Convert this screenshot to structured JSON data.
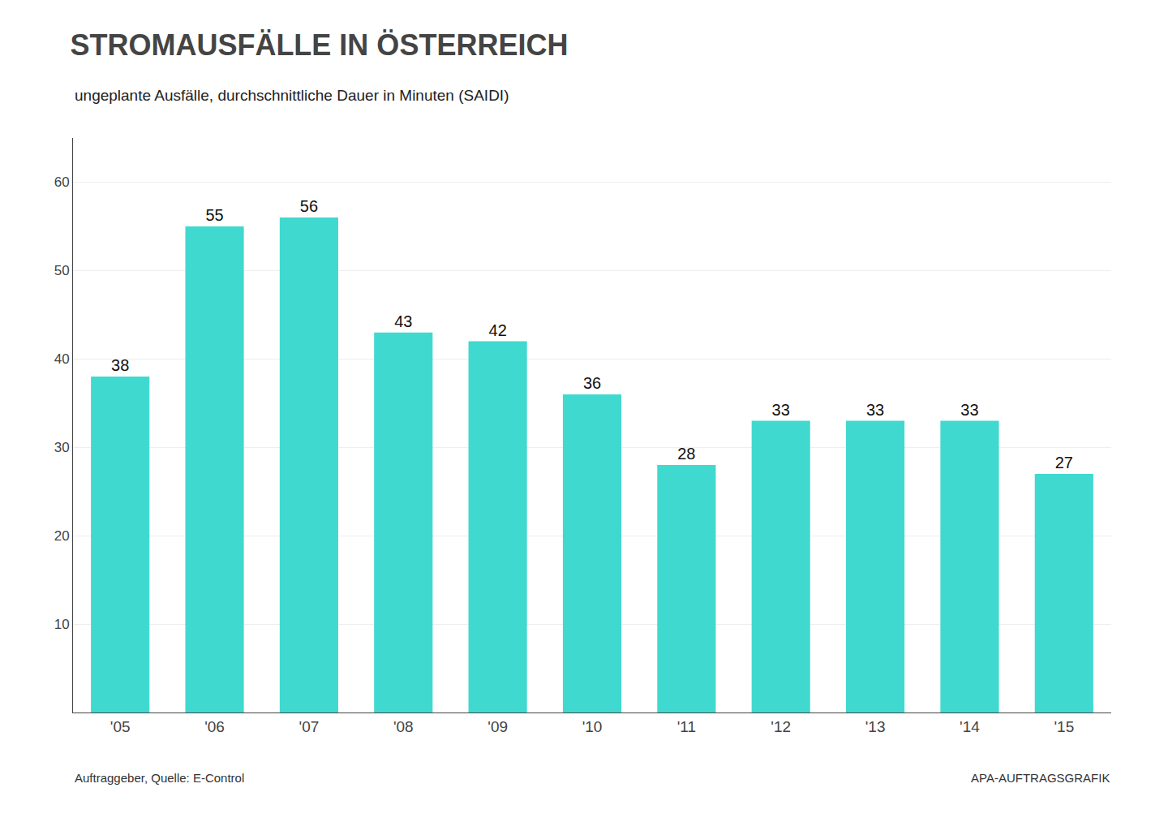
{
  "chart_data": {
    "type": "bar",
    "title": "STROMAUSFÄLLE IN ÖSTERREICH",
    "subtitle": "ungeplante Ausfälle, durchschnittliche Dauer in Minuten (SAIDI)",
    "categories": [
      "'05",
      "'06",
      "'07",
      "'08",
      "'09",
      "'10",
      "'11",
      "'12",
      "'13",
      "'14",
      "'15"
    ],
    "values": [
      38,
      55,
      56,
      43,
      42,
      36,
      28,
      33,
      33,
      33,
      27
    ],
    "color": "#40D9CF",
    "ylim": [
      0,
      65
    ],
    "yticks": [
      10,
      20,
      30,
      40,
      50,
      60
    ],
    "grid": true,
    "data_labels": true,
    "annotations": [
      "Auftraggeber, Quelle: E-Control",
      "APA-AUFTRAGSGRAFIK"
    ]
  }
}
